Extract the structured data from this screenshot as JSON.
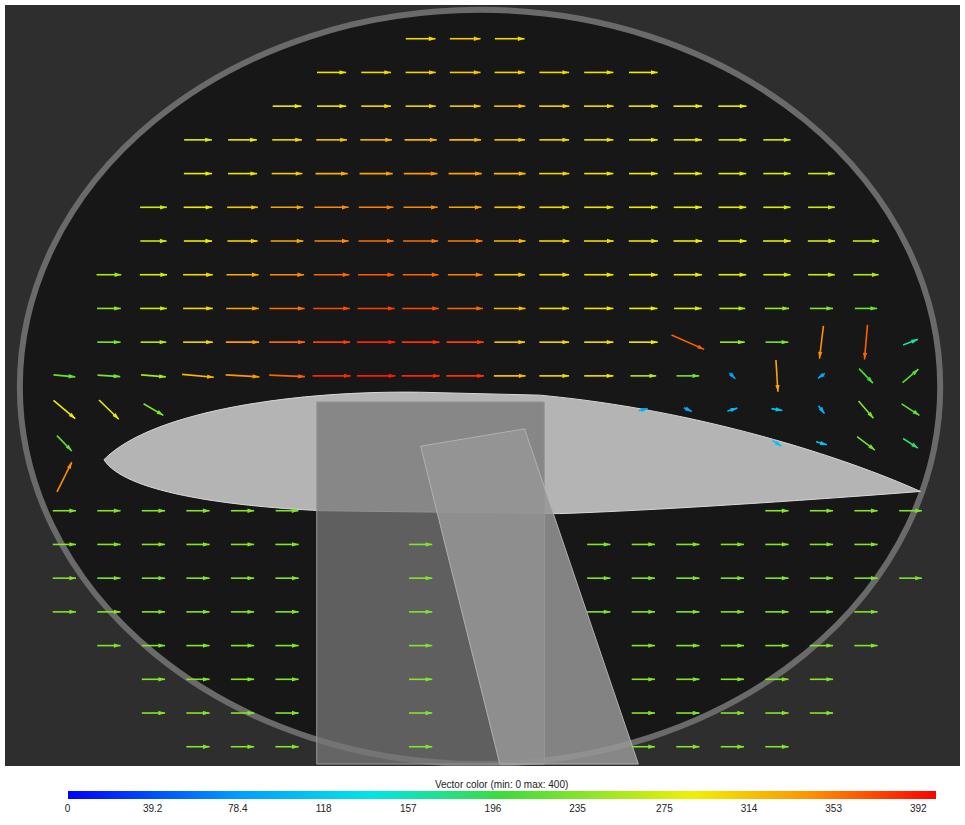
{
  "chart_data": {
    "type": "vector_field",
    "tick_labels": false,
    "xlim": [
      0,
      965
    ],
    "ylim": [
      790,
      0
    ],
    "x": [
      60,
      105,
      150,
      195,
      240,
      285,
      330,
      375,
      420,
      465,
      510,
      555,
      600,
      645,
      690,
      735,
      780,
      825,
      870,
      915
    ],
    "y": [
      35,
      70,
      105,
      140,
      175,
      210,
      245,
      280,
      315,
      350,
      385,
      420,
      455,
      490,
      525,
      560,
      595,
      630,
      665,
      700,
      735,
      770
    ],
    "u": [
      [
        null,
        null,
        null,
        null,
        null,
        null,
        null,
        null,
        300,
        310,
        300,
        null,
        null,
        null,
        null,
        null,
        null,
        null,
        null,
        null
      ],
      [
        null,
        null,
        null,
        null,
        null,
        null,
        295,
        300,
        305,
        310,
        305,
        300,
        295,
        290,
        null,
        null,
        null,
        null,
        null,
        null
      ],
      [
        null,
        null,
        null,
        null,
        null,
        290,
        295,
        300,
        305,
        310,
        315,
        305,
        300,
        295,
        290,
        285,
        null,
        null,
        null,
        null
      ],
      [
        null,
        null,
        null,
        280,
        290,
        300,
        310,
        320,
        325,
        320,
        310,
        300,
        295,
        290,
        285,
        280,
        275,
        null,
        null,
        null
      ],
      [
        null,
        null,
        null,
        285,
        295,
        310,
        325,
        335,
        340,
        335,
        320,
        305,
        295,
        290,
        285,
        280,
        275,
        270,
        null,
        null
      ],
      [
        null,
        null,
        270,
        290,
        310,
        330,
        345,
        350,
        345,
        330,
        310,
        300,
        295,
        290,
        285,
        280,
        275,
        270,
        null,
        null
      ],
      [
        null,
        null,
        265,
        285,
        305,
        330,
        345,
        355,
        355,
        350,
        320,
        305,
        300,
        295,
        290,
        285,
        280,
        275,
        265,
        null
      ],
      [
        null,
        250,
        275,
        300,
        325,
        345,
        360,
        365,
        360,
        350,
        310,
        300,
        295,
        290,
        285,
        280,
        275,
        270,
        255,
        null
      ],
      [
        null,
        240,
        270,
        300,
        330,
        355,
        370,
        375,
        370,
        360,
        320,
        300,
        295,
        285,
        280,
        260,
        245,
        235,
        225,
        null
      ],
      [
        null,
        235,
        260,
        300,
        335,
        360,
        375,
        385,
        380,
        375,
        310,
        300,
        295,
        290,
        330,
        250,
        230,
        -40,
        -30,
        150
      ],
      [
        220,
        230,
        250,
        320,
        340,
        360,
        385,
        390,
        385,
        380,
        320,
        300,
        295,
        260,
        230,
        60,
        20,
        -70,
        140,
        160
      ],
      [
        220,
        200,
        200,
        null,
        null,
        null,
        null,
        null,
        null,
        null,
        null,
        null,
        null,
        90,
        80,
        100,
        110,
        60,
        150,
        180
      ],
      [
        150,
        null,
        null,
        null,
        null,
        null,
        null,
        null,
        null,
        null,
        null,
        null,
        null,
        null,
        null,
        null,
        90,
        110,
        180,
        150
      ],
      [
        150,
        null,
        null,
        null,
        null,
        null,
        null,
        null,
        null,
        null,
        null,
        null,
        null,
        null,
        null,
        null,
        null,
        null,
        null,
        null
      ],
      [
        235,
        235,
        235,
        235,
        235,
        230,
        null,
        null,
        null,
        null,
        null,
        null,
        null,
        null,
        null,
        null,
        235,
        235,
        235,
        230
      ],
      [
        235,
        235,
        235,
        235,
        235,
        235,
        null,
        null,
        235,
        null,
        null,
        null,
        235,
        235,
        235,
        235,
        235,
        235,
        235,
        null
      ],
      [
        235,
        235,
        235,
        235,
        235,
        235,
        null,
        null,
        235,
        null,
        null,
        null,
        235,
        235,
        235,
        235,
        235,
        235,
        235,
        230
      ],
      [
        235,
        235,
        235,
        235,
        235,
        235,
        null,
        null,
        235,
        null,
        null,
        null,
        235,
        235,
        235,
        235,
        235,
        235,
        235,
        null
      ],
      [
        null,
        235,
        235,
        235,
        235,
        235,
        null,
        null,
        235,
        null,
        null,
        null,
        null,
        235,
        235,
        235,
        235,
        235,
        235,
        null
      ],
      [
        null,
        null,
        235,
        235,
        235,
        235,
        null,
        null,
        235,
        null,
        null,
        null,
        null,
        235,
        235,
        235,
        235,
        235,
        null,
        null
      ],
      [
        null,
        null,
        235,
        235,
        235,
        235,
        null,
        null,
        235,
        null,
        null,
        null,
        null,
        235,
        235,
        235,
        235,
        235,
        null,
        null
      ],
      [
        null,
        null,
        null,
        235,
        235,
        235,
        null,
        null,
        235,
        null,
        null,
        null,
        null,
        235,
        235,
        235,
        235,
        null,
        null,
        null
      ]
    ],
    "v": [
      [
        null,
        null,
        null,
        null,
        null,
        null,
        null,
        null,
        0,
        0,
        0,
        null,
        null,
        null,
        null,
        null,
        null,
        null,
        null,
        null
      ],
      [
        null,
        null,
        null,
        null,
        null,
        null,
        0,
        0,
        0,
        0,
        0,
        0,
        0,
        0,
        null,
        null,
        null,
        null,
        null,
        null
      ],
      [
        null,
        null,
        null,
        null,
        null,
        0,
        0,
        0,
        0,
        0,
        0,
        0,
        0,
        0,
        0,
        0,
        null,
        null,
        null,
        null
      ],
      [
        null,
        null,
        null,
        0,
        0,
        0,
        0,
        0,
        0,
        0,
        0,
        0,
        0,
        0,
        0,
        0,
        0,
        null,
        null,
        null
      ],
      [
        null,
        null,
        null,
        0,
        0,
        0,
        0,
        0,
        0,
        0,
        0,
        0,
        0,
        0,
        0,
        0,
        0,
        0,
        null,
        null
      ],
      [
        null,
        null,
        0,
        0,
        0,
        0,
        0,
        0,
        0,
        0,
        0,
        0,
        0,
        0,
        0,
        0,
        0,
        0,
        null,
        null
      ],
      [
        null,
        null,
        0,
        0,
        0,
        0,
        0,
        0,
        0,
        0,
        0,
        0,
        0,
        0,
        0,
        0,
        0,
        0,
        0,
        null
      ],
      [
        null,
        0,
        0,
        0,
        0,
        0,
        0,
        0,
        0,
        0,
        0,
        0,
        0,
        0,
        0,
        0,
        0,
        0,
        0,
        null
      ],
      [
        null,
        0,
        0,
        0,
        0,
        0,
        0,
        0,
        0,
        0,
        0,
        0,
        0,
        0,
        0,
        0,
        0,
        0,
        0,
        null
      ],
      [
        null,
        0,
        0,
        0,
        0,
        0,
        0,
        0,
        0,
        0,
        0,
        0,
        0,
        0,
        150,
        0,
        0,
        340,
        360,
        -60
      ],
      [
        20,
        15,
        20,
        30,
        20,
        15,
        0,
        0,
        0,
        0,
        0,
        0,
        0,
        0,
        0,
        60,
        330,
        50,
        150,
        -140
      ],
      [
        190,
        200,
        120,
        null,
        null,
        null,
        null,
        null,
        null,
        null,
        null,
        null,
        null,
        -20,
        40,
        -30,
        20,
        80,
        180,
        120
      ],
      [
        160,
        null,
        null,
        null,
        null,
        null,
        null,
        null,
        null,
        null,
        null,
        null,
        null,
        null,
        null,
        null,
        60,
        30,
        140,
        100
      ],
      [
        -310,
        null,
        null,
        null,
        null,
        null,
        null,
        null,
        null,
        null,
        null,
        null,
        null,
        null,
        null,
        null,
        null,
        null,
        null,
        null
      ],
      [
        0,
        0,
        0,
        0,
        0,
        0,
        null,
        null,
        null,
        null,
        null,
        null,
        null,
        null,
        null,
        null,
        0,
        0,
        0,
        0
      ],
      [
        0,
        0,
        0,
        0,
        0,
        0,
        null,
        null,
        0,
        null,
        null,
        null,
        0,
        0,
        0,
        0,
        0,
        0,
        0,
        null
      ],
      [
        0,
        0,
        0,
        0,
        0,
        0,
        null,
        null,
        0,
        null,
        null,
        null,
        0,
        0,
        0,
        0,
        0,
        0,
        0,
        0
      ],
      [
        0,
        0,
        0,
        0,
        0,
        0,
        null,
        null,
        0,
        null,
        null,
        null,
        0,
        0,
        0,
        0,
        0,
        0,
        0,
        null
      ],
      [
        null,
        0,
        0,
        0,
        0,
        0,
        null,
        null,
        0,
        null,
        null,
        null,
        null,
        0,
        0,
        0,
        0,
        0,
        0,
        null
      ],
      [
        null,
        null,
        0,
        0,
        0,
        0,
        null,
        null,
        0,
        null,
        null,
        null,
        null,
        0,
        0,
        0,
        0,
        0,
        null,
        null
      ],
      [
        null,
        null,
        0,
        0,
        0,
        0,
        null,
        null,
        0,
        null,
        null,
        null,
        null,
        0,
        0,
        0,
        0,
        0,
        null,
        null
      ],
      [
        null,
        null,
        null,
        0,
        0,
        0,
        null,
        null,
        0,
        null,
        null,
        null,
        null,
        0,
        0,
        0,
        0,
        null,
        null,
        null
      ]
    ],
    "colorbar": {
      "title": "Vector color (min: 0 max: 400)",
      "range": [
        0,
        400
      ],
      "ticks": [
        0,
        39.2,
        78.4,
        118,
        157,
        196,
        235,
        275,
        314,
        353,
        392
      ]
    }
  }
}
